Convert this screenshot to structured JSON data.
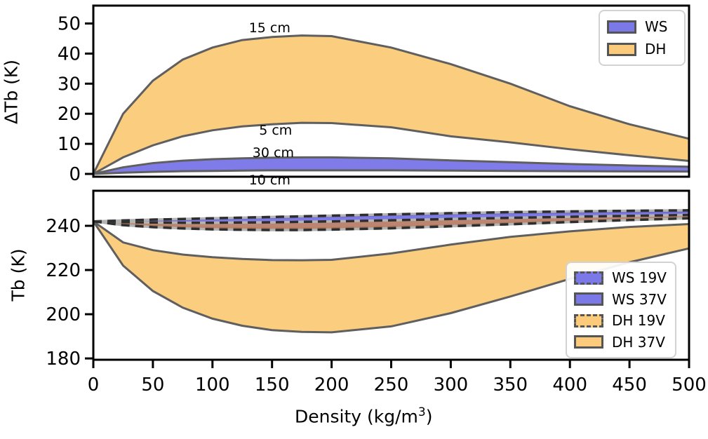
{
  "figure": {
    "background": "#ffffff",
    "colors": {
      "ws_fill": "#7B78E8",
      "dh_fill": "#FBCB7B",
      "dh19_fill": "#BD7D5A",
      "edge_gray": "#5f5f5f",
      "edge_blue": "#54528F",
      "dash_dark": "#2E2E2E",
      "dash_under": "#B3B3B3",
      "spine": "#000000"
    }
  },
  "chart_data": [
    {
      "type": "area",
      "panel": "top",
      "ylabel": "ΔTb (K)",
      "yticks": [
        0,
        10,
        20,
        30,
        40,
        50
      ],
      "ylim": [
        -1,
        56
      ],
      "xlim": [
        0,
        500
      ],
      "x": [
        0,
        25,
        50,
        75,
        100,
        125,
        150,
        175,
        200,
        250,
        300,
        350,
        400,
        450,
        500
      ],
      "series": [
        {
          "name": "DH",
          "band_between": [
            "5 cm",
            "15 cm"
          ],
          "upper": [
            0,
            20,
            31,
            38,
            42,
            44.5,
            45.5,
            46,
            45.8,
            42,
            36.5,
            30,
            22.5,
            16.5,
            11.7
          ],
          "lower": [
            0,
            5.5,
            9.5,
            12.5,
            14.5,
            15.8,
            16.5,
            17,
            16.9,
            15.5,
            12.5,
            10.5,
            8.2,
            6.2,
            4.3
          ],
          "fill": "dh_fill",
          "linestyle": "solid"
        },
        {
          "name": "WS",
          "band_between": [
            "10 cm",
            "30 cm"
          ],
          "upper": [
            0,
            2.2,
            3.6,
            4.4,
            4.9,
            5.2,
            5.4,
            5.5,
            5.5,
            5.2,
            4.5,
            3.9,
            3.3,
            2.8,
            2.4
          ],
          "lower": [
            0,
            0.4,
            0.7,
            0.9,
            1.0,
            1.1,
            1.2,
            1.2,
            1.2,
            1.2,
            1.1,
            1.0,
            0.9,
            0.85,
            0.8
          ],
          "fill": "ws_fill",
          "linestyle": "solid"
        }
      ],
      "annotations": [
        {
          "text": "15 cm",
          "x": 148,
          "y": 48.4
        },
        {
          "text": "5 cm",
          "x": 153,
          "y": 14.4
        },
        {
          "text": "30 cm",
          "x": 151,
          "y": 7.0
        },
        {
          "text": "10 cm",
          "x": 148,
          "y": -2.2
        }
      ],
      "legend": [
        {
          "label": "WS",
          "fill": "ws_fill",
          "dashed": false
        },
        {
          "label": "DH",
          "fill": "dh_fill",
          "dashed": false
        }
      ]
    },
    {
      "type": "area",
      "panel": "bottom",
      "ylabel": "Tb (K)",
      "xlabel_prefix": "Density (kg/m",
      "xlabel_sup": "3",
      "xlabel_suffix": ")",
      "yticks": [
        180,
        200,
        220,
        240
      ],
      "xticks": [
        0,
        50,
        100,
        150,
        200,
        250,
        300,
        350,
        400,
        450,
        500
      ],
      "ylim": [
        179,
        256
      ],
      "xlim": [
        0,
        500
      ],
      "x": [
        0,
        25,
        50,
        75,
        100,
        125,
        150,
        175,
        200,
        250,
        300,
        350,
        400,
        450,
        500
      ],
      "series": [
        {
          "name": "DH 37V",
          "upper": [
            242,
            232.5,
            229,
            227,
            225.8,
            225,
            224.5,
            224.4,
            224.6,
            227.5,
            231.5,
            235,
            237.5,
            239.5,
            240.8
          ],
          "lower": [
            242,
            222,
            210.5,
            203,
            198,
            194.8,
            192.8,
            192,
            191.8,
            194.5,
            200.5,
            208,
            216,
            223.5,
            229.8
          ],
          "fill": "dh_fill",
          "linestyle": "solid"
        },
        {
          "name": "WS 37V",
          "upper": [
            242,
            242.2,
            242.4,
            242.7,
            243,
            243.3,
            243.6,
            243.9,
            244.2,
            244.8,
            245.3,
            245.7,
            246,
            246.2,
            246.4
          ],
          "lower": [
            242,
            241.6,
            241.4,
            241.3,
            241.3,
            241.4,
            241.5,
            241.7,
            241.9,
            242.4,
            243,
            243.5,
            244,
            244.4,
            244.8
          ],
          "fill": "ws_fill",
          "linestyle": "solid-blue"
        },
        {
          "name": "WS 19V",
          "upper": [
            242,
            242.4,
            242.8,
            243.1,
            243.4,
            243.7,
            244,
            244.3,
            244.6,
            245.2,
            245.7,
            246.2,
            246.5,
            246.8,
            247
          ],
          "lower": [
            242,
            240.8,
            239.9,
            239.3,
            238.9,
            238.7,
            238.6,
            238.6,
            238.8,
            239.4,
            240.2,
            241.1,
            242,
            242.8,
            243.6
          ],
          "fill": "ws_fill",
          "linestyle": "dashed"
        },
        {
          "name": "DH 19V",
          "upper": [
            242,
            241.7,
            241.5,
            241.4,
            241.4,
            241.5,
            241.6,
            241.8,
            242,
            242.5,
            243.1,
            243.6,
            244.1,
            244.5,
            244.9
          ],
          "lower": [
            242,
            240.3,
            239.4,
            238.8,
            238.4,
            238.2,
            238.1,
            238.1,
            238.3,
            238.9,
            239.8,
            240.7,
            241.7,
            242.6,
            243.4
          ],
          "fill": "dh19_fill",
          "linestyle": "dashed"
        }
      ],
      "legend": [
        {
          "label": "WS 19V",
          "fill": "ws_fill",
          "dashed": true
        },
        {
          "label": "WS 37V",
          "fill": "ws_fill",
          "dashed": false
        },
        {
          "label": "DH 19V",
          "fill": "dh_fill",
          "dashed": true
        },
        {
          "label": "DH 37V",
          "fill": "dh_fill",
          "dashed": false
        }
      ]
    }
  ]
}
